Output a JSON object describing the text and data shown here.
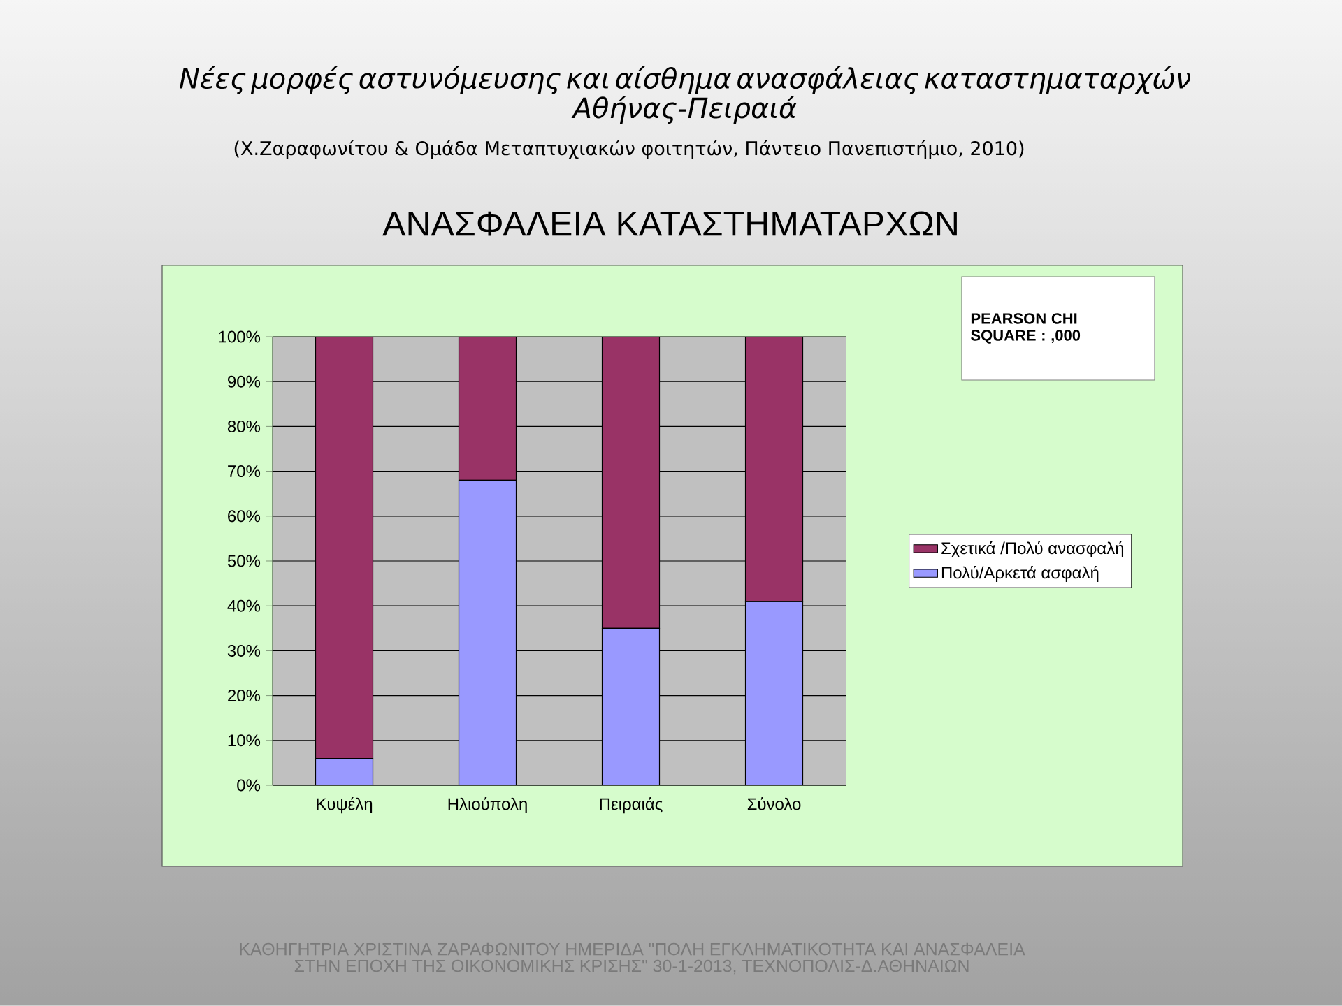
{
  "chart_data": {
    "type": "bar",
    "title": "Νέες μορφές αστυνόμευσης και αίσθημα ανασφάλειας καταστηματαρχών Αθήνας-Πειραιά",
    "subtitle": "(Χ.Ζαραφωνίτου & Ομάδα Μεταπτυχιακών φοιτητών, Πάντειο Πανεπιστήμιο, 2010)",
    "annotations": [
      "ΑΝΑΣΦΑΛΕΙΑ ΚΑΤΑΣΤΗΜΑΤΑΡΧΩΝ",
      "PEARSON CHI SQUARE : ,000",
      "ΚΑΘΗΓΗΤΡΙΑ ΧΡΙΣΤΙΝΑ ΖΑΡΑΦΩΝΙΤΟΥ ΗΜΕΡΙΔΑ \"ΠΟΛΗ ΕΓΚΛΗΜΑΤΙΚΟΤΗΤΑ ΚΑΙ ΑΝΑΣΦΑΛΕΙΑ ΣΤΗΝ ΕΠΟΧΗ ΤΗΣ ΟΙΚΟΝΟΜΙΚΗΣ ΚΡΙΣΗΣ\" 30-1-2013, ΤΕΧΝΟΠΟΛΙΣ-Δ.ΑΘΗΝΑΙΩΝ"
    ],
    "categories": [
      "Κυψέλη",
      "Ηλιούπολη",
      "Πειραιάς",
      "Σύνολο"
    ],
    "series": [
      {
        "name": "Πολύ/Αρκετά ασφαλή",
        "color": "#9999ff",
        "values": [
          6,
          68,
          35,
          41
        ]
      },
      {
        "name": "Σχετικά /Πολύ ανασφαλή",
        "color": "#993366",
        "values": [
          94,
          32,
          65,
          59
        ]
      }
    ],
    "stacked": true,
    "ylim": [
      0,
      100
    ],
    "yticks": [
      {
        "value": 0,
        "label": "0%"
      },
      {
        "value": 10,
        "label": "10%"
      },
      {
        "value": 20,
        "label": "20%"
      },
      {
        "value": 30,
        "label": "30%"
      },
      {
        "value": 40,
        "label": "40%"
      },
      {
        "value": 50,
        "label": "50%"
      },
      {
        "value": 60,
        "label": "60%"
      },
      {
        "value": 70,
        "label": "70%"
      },
      {
        "value": 80,
        "label": "80%"
      },
      {
        "value": 90,
        "label": "90%"
      },
      {
        "value": 100,
        "label": "100%"
      }
    ],
    "grid": "y",
    "legend": "right"
  }
}
